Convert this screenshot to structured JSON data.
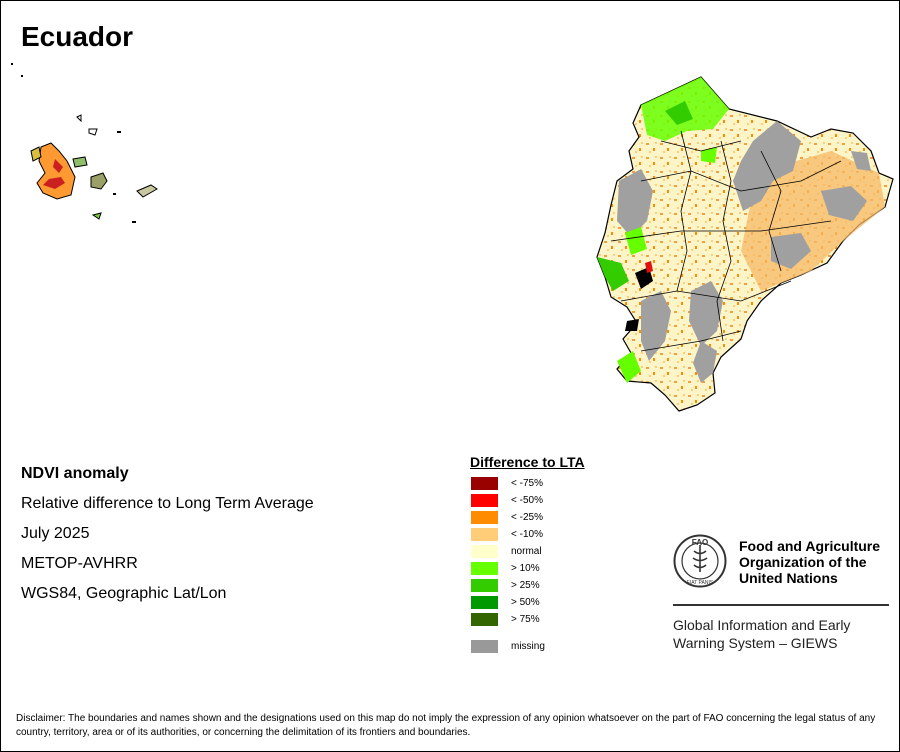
{
  "title": "Ecuador",
  "info": {
    "heading": "NDVI anomaly",
    "subtitle": "Relative difference to Long Term Average",
    "period": "July 2025",
    "sensor": "METOP-AVHRR",
    "projection": "WGS84, Geographic Lat/Lon"
  },
  "legend": {
    "title": "Difference to LTA",
    "items": [
      {
        "label": "< -75%",
        "color": "#990000"
      },
      {
        "label": "< -50%",
        "color": "#ff0000"
      },
      {
        "label": "< -25%",
        "color": "#ff8c00"
      },
      {
        "label": "< -10%",
        "color": "#ffcc77"
      },
      {
        "label": "normal",
        "color": "#ffffcc"
      },
      {
        "label": "> 10%",
        "color": "#66ff00"
      },
      {
        "label": "> 25%",
        "color": "#33cc00"
      },
      {
        "label": "> 50%",
        "color": "#009900"
      },
      {
        "label": "> 75%",
        "color": "#336600"
      }
    ],
    "missing": {
      "label": "missing",
      "color": "#999999"
    }
  },
  "organization": {
    "name": "Food and Agriculture Organization of the United Nations",
    "logo_text": "FAO",
    "logo_motto": "FIAT PANIS",
    "program": "Global Information and Early Warning System – GIEWS"
  },
  "disclaimer": "Disclaimer: The boundaries and names shown and the designations used on this map do not imply the expression of any opinion whatsoever on the part of FAO concerning the legal status of any country, territory, area or of its authorities, or concerning the delimitation of its frontiers and boundaries."
}
